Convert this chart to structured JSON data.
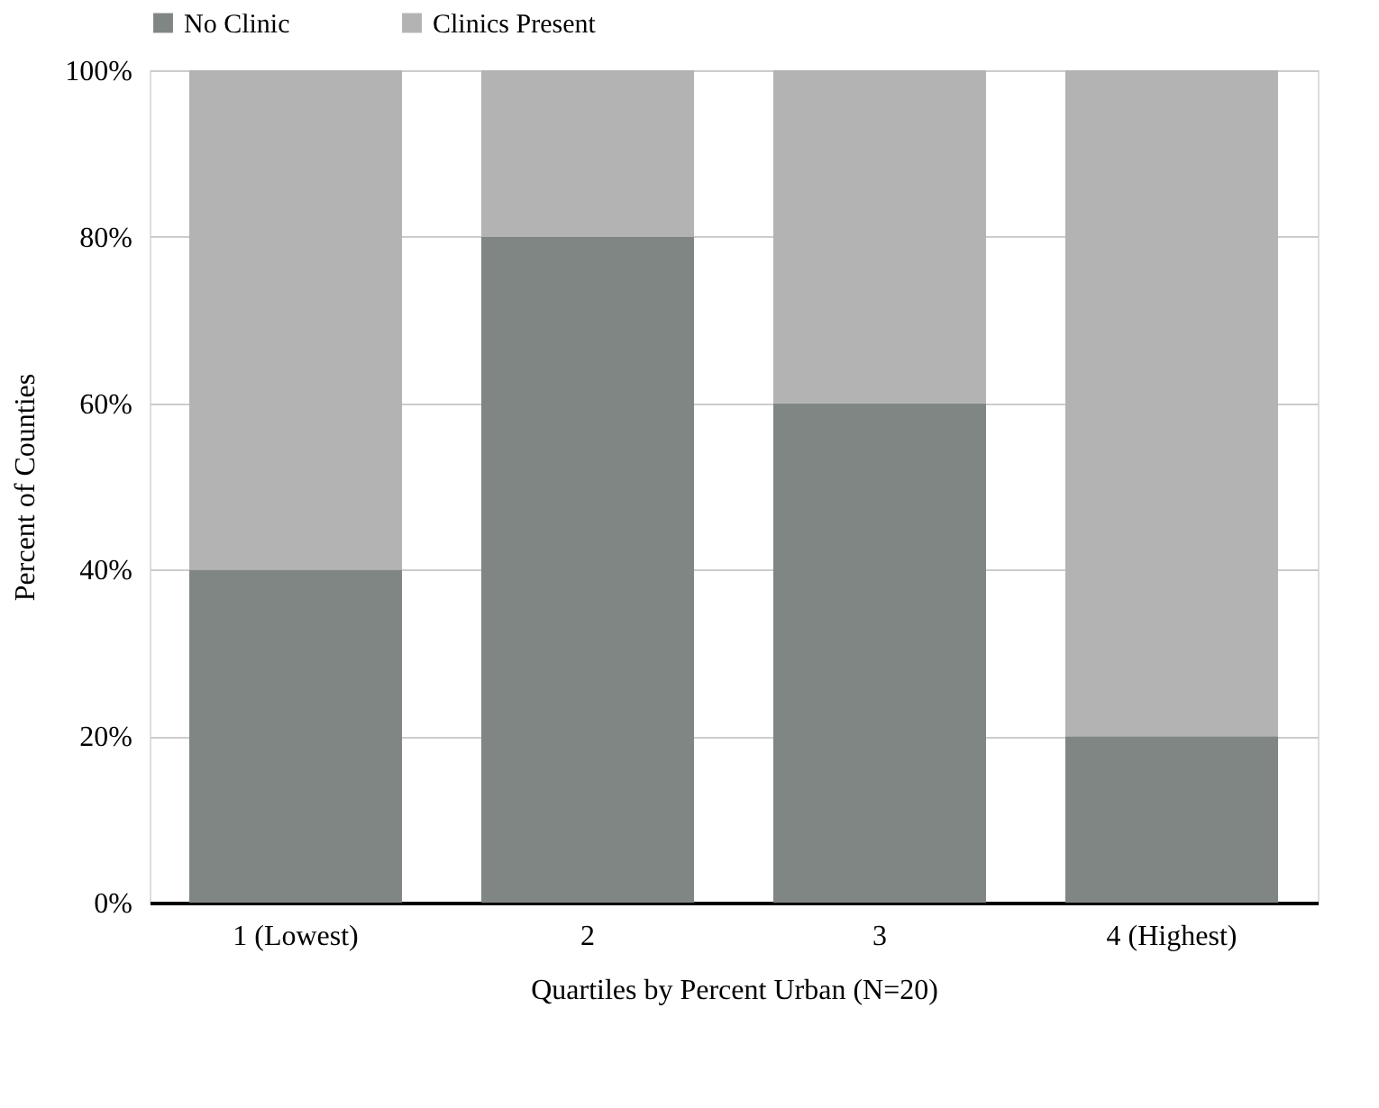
{
  "chart_data": {
    "type": "bar",
    "stacked": true,
    "xlabel": "Quartiles by Percent Urban (N=20)",
    "ylabel": "Percent of Counties",
    "categories": [
      "1 (Lowest)",
      "2",
      "3",
      "4 (Highest)"
    ],
    "series": [
      {
        "name": "No Clinic",
        "color": "#808683",
        "values": [
          40,
          80,
          60,
          20
        ]
      },
      {
        "name": "Clinics Present",
        "color": "#b3b3b3",
        "values": [
          60,
          20,
          40,
          80
        ]
      }
    ],
    "ylim": [
      0,
      100
    ],
    "yticks": [
      {
        "value": 0,
        "label": "0%"
      },
      {
        "value": 20,
        "label": "20%"
      },
      {
        "value": 40,
        "label": "40%"
      },
      {
        "value": 60,
        "label": "60%"
      },
      {
        "value": 80,
        "label": "80%"
      },
      {
        "value": 100,
        "label": "100%"
      }
    ],
    "grid": "y",
    "legend": "top"
  }
}
